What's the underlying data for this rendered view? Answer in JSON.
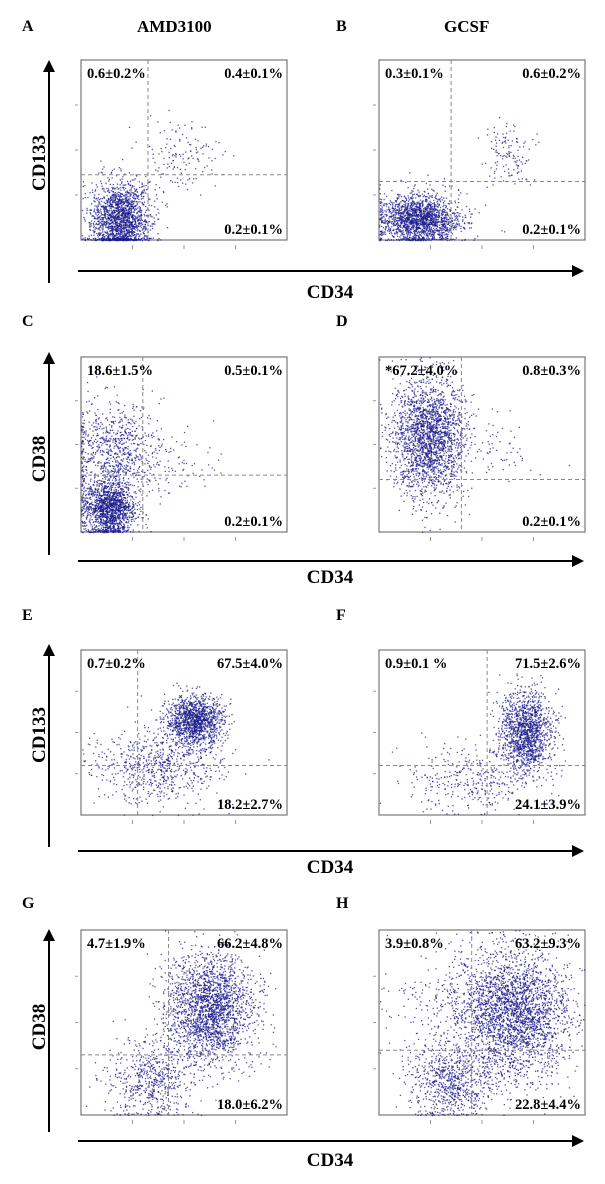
{
  "columns": {
    "left": "AMD3100",
    "right": "GCSF"
  },
  "colors": {
    "dots": "#1a1a8c",
    "gate": "#888888",
    "frame": "#777777"
  },
  "chart_data": [
    {
      "type": "scatter",
      "panel": "A",
      "condition": "AMD3100",
      "xlabel": "CD34",
      "ylabel": "CD133",
      "xlim": [
        0,
        4
      ],
      "ylim": [
        0,
        4
      ],
      "gate": {
        "x": 1.3,
        "y": 1.45
      },
      "quadrants": {
        "upper_left": "0.6±0.2%",
        "upper_right": "0.4±0.1%",
        "lower_right": "0.2±0.1%"
      },
      "clusters": [
        {
          "x": 0.75,
          "y": 0.45,
          "sx": 0.28,
          "sy": 0.42,
          "n": 1800
        },
        {
          "x": 1.9,
          "y": 1.9,
          "sx": 0.4,
          "sy": 0.4,
          "n": 140
        }
      ]
    },
    {
      "type": "scatter",
      "panel": "B",
      "condition": "GCSF",
      "xlabel": "CD34",
      "ylabel": "CD133",
      "xlim": [
        0,
        4
      ],
      "ylim": [
        0,
        4
      ],
      "gate": {
        "x": 1.4,
        "y": 1.3
      },
      "quadrants": {
        "upper_left": "0.3±0.1%",
        "upper_right": "0.6±0.2%",
        "lower_right": "0.2±0.1%"
      },
      "clusters": [
        {
          "x": 0.8,
          "y": 0.45,
          "sx": 0.38,
          "sy": 0.28,
          "n": 1800
        },
        {
          "x": 2.5,
          "y": 1.9,
          "sx": 0.22,
          "sy": 0.35,
          "n": 130
        }
      ]
    },
    {
      "type": "scatter",
      "panel": "C",
      "condition": "AMD3100",
      "xlabel": "CD34",
      "ylabel": "CD38",
      "xlim": [
        0,
        4
      ],
      "ylim": [
        0,
        4
      ],
      "gate": {
        "x": 1.2,
        "y": 1.3
      },
      "quadrants": {
        "upper_left": "18.6±1.5%",
        "upper_right": "0.5±0.1%",
        "lower_right": "0.2±0.1%"
      },
      "clusters": [
        {
          "x": 0.55,
          "y": 0.55,
          "sx": 0.25,
          "sy": 0.35,
          "n": 1500
        },
        {
          "x": 0.6,
          "y": 1.9,
          "sx": 0.4,
          "sy": 0.55,
          "n": 700
        },
        {
          "x": 1.6,
          "y": 1.6,
          "sx": 0.5,
          "sy": 0.4,
          "n": 120
        }
      ]
    },
    {
      "type": "scatter",
      "panel": "D",
      "condition": "GCSF",
      "xlabel": "CD34",
      "ylabel": "CD38",
      "xlim": [
        0,
        4
      ],
      "ylim": [
        0,
        4
      ],
      "gate": {
        "x": 1.6,
        "y": 1.2
      },
      "quadrants": {
        "upper_left": "*67.2±4.0%",
        "upper_right": "0.8±0.3%",
        "lower_right": "0.2±0.1%"
      },
      "clusters": [
        {
          "x": 0.95,
          "y": 2.2,
          "sx": 0.35,
          "sy": 0.7,
          "n": 2200
        },
        {
          "x": 2.4,
          "y": 1.9,
          "sx": 0.3,
          "sy": 0.4,
          "n": 60
        }
      ]
    },
    {
      "type": "scatter",
      "panel": "E",
      "condition": "AMD3100",
      "xlabel": "CD34",
      "ylabel": "CD133",
      "xlim": [
        0,
        4
      ],
      "ylim": [
        0,
        4
      ],
      "gate": {
        "x": 1.1,
        "y": 1.2
      },
      "quadrants": {
        "upper_left": "0.7±0.2%",
        "upper_right": "67.5±4.0%",
        "lower_right": "18.2±2.7%"
      },
      "clusters": [
        {
          "x": 2.2,
          "y": 2.3,
          "sx": 0.28,
          "sy": 0.3,
          "n": 1300
        },
        {
          "x": 1.5,
          "y": 1.2,
          "sx": 0.6,
          "sy": 0.45,
          "n": 700
        }
      ]
    },
    {
      "type": "scatter",
      "panel": "F",
      "condition": "GCSF",
      "xlabel": "CD34",
      "ylabel": "CD133",
      "xlim": [
        0,
        4
      ],
      "ylim": [
        0,
        4
      ],
      "gate": {
        "x": 2.1,
        "y": 1.2
      },
      "quadrants": {
        "upper_left": "0.9±0.1 %",
        "upper_right": "71.5±2.6%",
        "lower_right": "24.1±3.9%"
      },
      "clusters": [
        {
          "x": 2.85,
          "y": 2.0,
          "sx": 0.25,
          "sy": 0.5,
          "n": 1400
        },
        {
          "x": 1.8,
          "y": 0.9,
          "sx": 0.6,
          "sy": 0.4,
          "n": 350
        }
      ]
    },
    {
      "type": "scatter",
      "panel": "G",
      "condition": "AMD3100",
      "xlabel": "CD34",
      "ylabel": "CD38",
      "xlim": [
        0,
        4
      ],
      "ylim": [
        0,
        4
      ],
      "gate": {
        "x": 1.7,
        "y": 1.3
      },
      "quadrants": {
        "upper_left": "4.7±1.9%",
        "upper_right": "66.2±4.8%",
        "lower_right": "18.0±6.2%"
      },
      "clusters": [
        {
          "x": 2.5,
          "y": 2.3,
          "sx": 0.42,
          "sy": 0.6,
          "n": 2200
        },
        {
          "x": 1.35,
          "y": 0.8,
          "sx": 0.45,
          "sy": 0.45,
          "n": 600
        }
      ]
    },
    {
      "type": "scatter",
      "panel": "H",
      "condition": "GCSF",
      "xlabel": "CD34",
      "ylabel": "CD38",
      "xlim": [
        0,
        4
      ],
      "ylim": [
        0,
        4
      ],
      "gate": {
        "x": 1.8,
        "y": 1.4
      },
      "quadrants": {
        "upper_left": "3.9±0.8%",
        "upper_right": "63.2±9.3%",
        "lower_right": "22.8±4.4%"
      },
      "clusters": [
        {
          "x": 2.6,
          "y": 2.2,
          "sx": 0.55,
          "sy": 0.7,
          "n": 2800
        },
        {
          "x": 1.35,
          "y": 0.7,
          "sx": 0.4,
          "sy": 0.4,
          "n": 700
        },
        {
          "x": 1.6,
          "y": 2.2,
          "sx": 0.7,
          "sy": 0.6,
          "n": 300
        }
      ]
    }
  ]
}
